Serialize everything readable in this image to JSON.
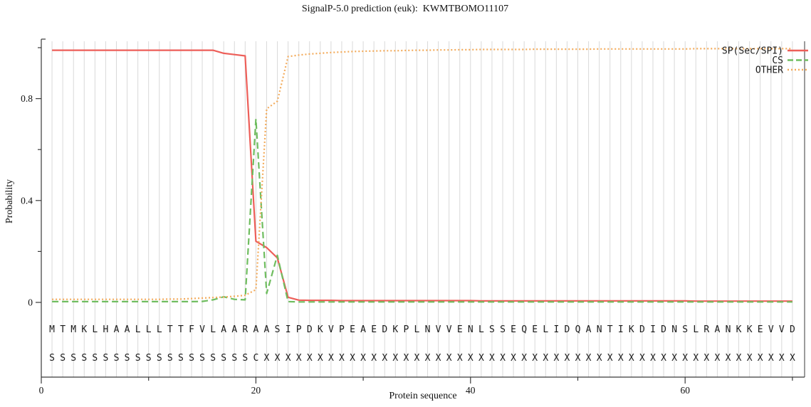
{
  "title": "SignalP-5.0 prediction (euk):  KWMTBOMO11107",
  "chart_data": {
    "type": "line",
    "title": "SignalP-5.0 prediction (euk):  KWMTBOMO11107",
    "xlabel": "Protein sequence",
    "ylabel": "Probability",
    "x_positions_start": 1,
    "xlim": [
      0,
      71.1
    ],
    "ylim": [
      0,
      1
    ],
    "grid": "vertical-per-residue",
    "legend_position": "top-right-inside",
    "x_axis": {
      "major_ticks": [
        0,
        20,
        40,
        60
      ],
      "major_tick_labels": [
        "0",
        "20",
        "40",
        "60"
      ],
      "minor_ticks": [
        10,
        30,
        50,
        70
      ]
    },
    "y_axis": {
      "major_ticks": [
        0,
        0.4,
        0.8
      ],
      "major_tick_labels": [
        "0",
        "0.4",
        "0.8"
      ],
      "minor_ticks": [
        0.2,
        0.6,
        1.0
      ]
    },
    "series": [
      {
        "name": "SP(Sec/SPI)",
        "color": "#ed5f59",
        "style": "solid",
        "values": [
          0.99,
          0.99,
          0.99,
          0.99,
          0.99,
          0.99,
          0.99,
          0.99,
          0.99,
          0.99,
          0.99,
          0.99,
          0.99,
          0.99,
          0.99,
          0.99,
          0.978,
          0.973,
          0.968,
          0.24,
          0.215,
          0.175,
          0.02,
          0.009,
          0.008,
          0.008,
          0.008,
          0.007,
          0.007,
          0.007,
          0.007,
          0.007,
          0.007,
          0.007,
          0.007,
          0.007,
          0.007,
          0.007,
          0.007,
          0.007,
          0.006,
          0.006,
          0.006,
          0.006,
          0.006,
          0.006,
          0.006,
          0.006,
          0.006,
          0.006,
          0.006,
          0.006,
          0.006,
          0.006,
          0.006,
          0.006,
          0.006,
          0.006,
          0.006,
          0.006,
          0.005,
          0.005,
          0.005,
          0.005,
          0.005,
          0.005,
          0.005,
          0.005,
          0.005,
          0.005
        ]
      },
      {
        "name": "CS",
        "color": "#6fbd5f",
        "style": "dashed",
        "values": [
          0.003,
          0.003,
          0.003,
          0.003,
          0.003,
          0.003,
          0.003,
          0.003,
          0.003,
          0.003,
          0.003,
          0.003,
          0.003,
          0.003,
          0.004,
          0.01,
          0.022,
          0.012,
          0.01,
          0.72,
          0.035,
          0.185,
          0.003,
          0.002,
          0.002,
          0.002,
          0.002,
          0.002,
          0.002,
          0.002,
          0.002,
          0.002,
          0.002,
          0.002,
          0.002,
          0.002,
          0.002,
          0.002,
          0.002,
          0.002,
          0.002,
          0.002,
          0.002,
          0.002,
          0.002,
          0.002,
          0.002,
          0.002,
          0.002,
          0.002,
          0.002,
          0.002,
          0.002,
          0.002,
          0.002,
          0.002,
          0.002,
          0.002,
          0.002,
          0.002,
          0.002,
          0.002,
          0.002,
          0.002,
          0.002,
          0.002,
          0.002,
          0.002,
          0.002,
          0.002
        ]
      },
      {
        "name": "OTHER",
        "color": "#f3ab5b",
        "style": "dotted",
        "values": [
          0.012,
          0.012,
          0.012,
          0.012,
          0.012,
          0.012,
          0.012,
          0.012,
          0.012,
          0.012,
          0.012,
          0.013,
          0.013,
          0.015,
          0.017,
          0.019,
          0.021,
          0.024,
          0.028,
          0.05,
          0.76,
          0.79,
          0.965,
          0.971,
          0.975,
          0.978,
          0.981,
          0.983,
          0.985,
          0.986,
          0.987,
          0.988,
          0.988,
          0.989,
          0.99,
          0.99,
          0.991,
          0.991,
          0.992,
          0.992,
          0.993,
          0.993,
          0.993,
          0.993,
          0.993,
          0.994,
          0.994,
          0.994,
          0.994,
          0.994,
          0.994,
          0.995,
          0.995,
          0.995,
          0.995,
          0.995,
          0.995,
          0.995,
          0.995,
          0.995,
          0.996,
          0.996,
          0.996,
          0.996,
          0.996,
          0.996,
          0.996,
          0.996,
          0.996,
          0.996
        ]
      }
    ],
    "sequence": {
      "residues": "MTMKLHAALLLTTFVLAARAASIPDKVPEAEDKPLNVVENLSSEQELIDQANTIKDIDNSLRANKKEVVD",
      "marks": "SSSSSSSSSSSSSSSSSSSCXXXXXXXXXXXXXXXXXXXXXXXXXXXXXXXXXXXXXXXXXXXXXXXXXX"
    },
    "colors": {
      "grid": "#d9d9d9",
      "axis": "#3a3a3a",
      "text": "#111111"
    }
  }
}
